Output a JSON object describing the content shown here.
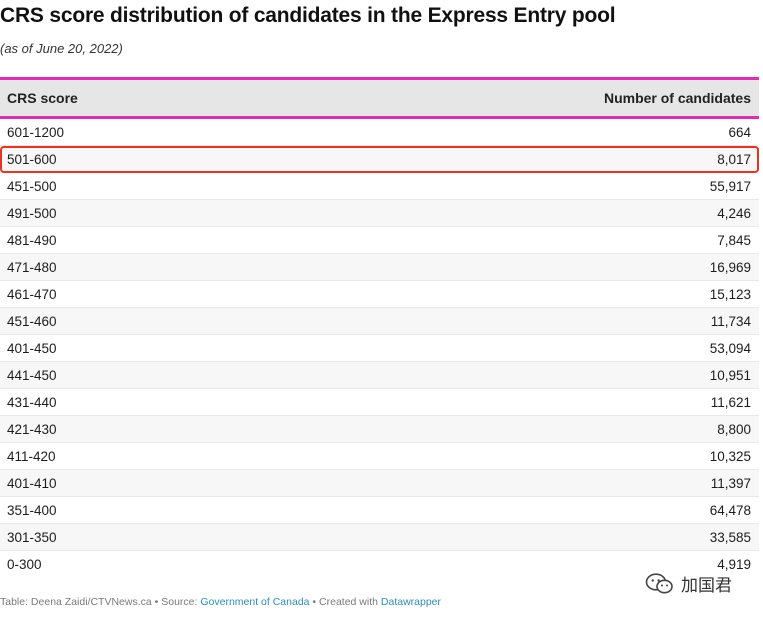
{
  "title": "CRS score distribution of candidates in the Express Entry pool",
  "subtitle": "(as of June 20, 2022)",
  "table": {
    "headers": [
      "CRS score",
      "Number of candidates"
    ],
    "rows": [
      {
        "score": "601-1200",
        "count": "664"
      },
      {
        "score": "501-600",
        "count": "8,017"
      },
      {
        "score": "451-500",
        "count": "55,917"
      },
      {
        "score": "491-500",
        "count": "4,246"
      },
      {
        "score": "481-490",
        "count": "7,845"
      },
      {
        "score": "471-480",
        "count": "16,969"
      },
      {
        "score": "461-470",
        "count": "15,123"
      },
      {
        "score": "451-460",
        "count": "11,734"
      },
      {
        "score": "401-450",
        "count": "53,094"
      },
      {
        "score": "441-450",
        "count": "10,951"
      },
      {
        "score": "431-440",
        "count": "11,621"
      },
      {
        "score": "421-430",
        "count": "8,800"
      },
      {
        "score": "411-420",
        "count": "10,325"
      },
      {
        "score": "401-410",
        "count": "11,397"
      },
      {
        "score": "351-400",
        "count": "64,478"
      },
      {
        "score": "301-350",
        "count": "33,585"
      },
      {
        "score": "0-300",
        "count": "4,919"
      }
    ],
    "highlighted_row": "501-600"
  },
  "footer": {
    "prefix": "Table: Deena Zaidi/CTVNews.ca • Source: ",
    "source_link": "Government of Canada",
    "middle": " • Created with ",
    "tool_link": "Datawrapper"
  },
  "watermark": {
    "text": "加国君",
    "icon": "wechat-icon"
  },
  "colors": {
    "header_border": "#e12ab8",
    "highlight_outline": "#e8331e",
    "link": "#2d8fb3"
  }
}
